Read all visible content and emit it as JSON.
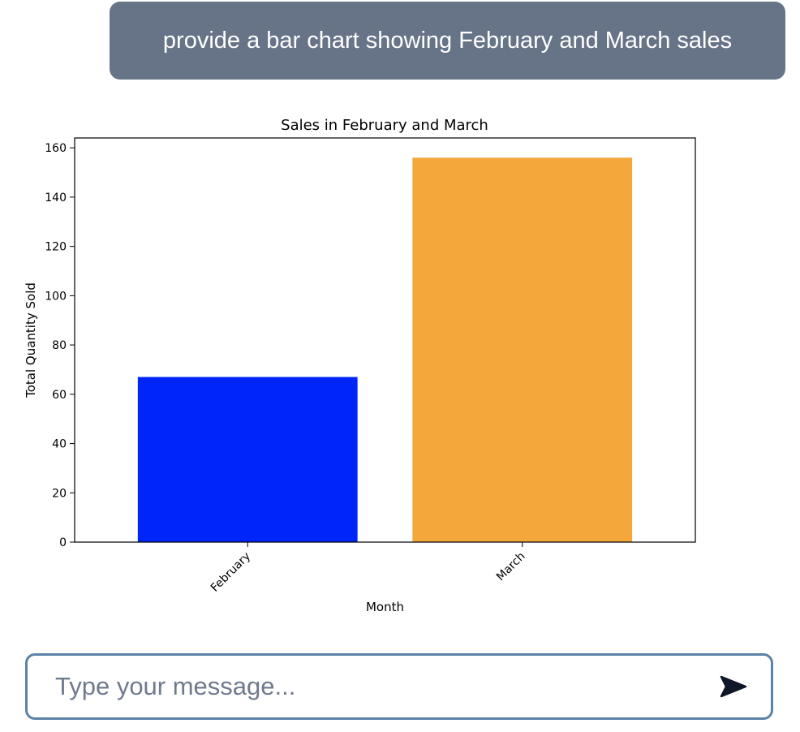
{
  "conversation": {
    "user_message": "provide a bar chart showing February and March sales"
  },
  "chart_data": {
    "type": "bar",
    "title": "Sales in February and March",
    "xlabel": "Month",
    "ylabel": "Total Quantity Sold",
    "categories": [
      "February",
      "March"
    ],
    "values": [
      67,
      156
    ],
    "colors": [
      "#0025f8",
      "#f4a73b"
    ],
    "ylim": [
      0,
      164
    ],
    "yticks": [
      0,
      20,
      40,
      60,
      80,
      100,
      120,
      140,
      160
    ],
    "xtick_rotation": 45,
    "grid": false,
    "legend": "none"
  },
  "composer": {
    "placeholder": "Type your message...",
    "value": "",
    "send_icon": "send-arrow-icon"
  }
}
